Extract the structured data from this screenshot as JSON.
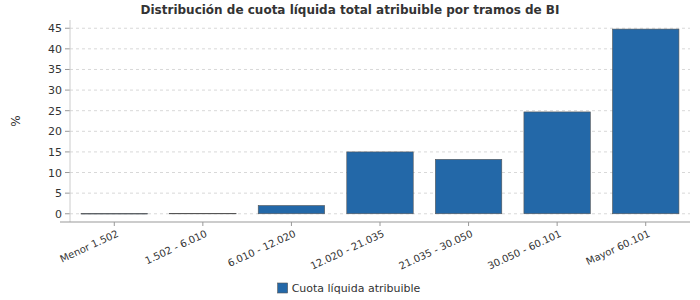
{
  "chart_data": {
    "type": "bar",
    "title": "Distribución de cuota líquida total atribuible por tramos de BI",
    "y_label": "%",
    "categories": [
      "Menor 1.502",
      "1.502 - 6.010",
      "6.010 - 12.020",
      "12.020 - 21.035",
      "21.035 - 30.050",
      "30.050 - 60.101",
      "Mayor 60.101"
    ],
    "series": [
      {
        "name": "Cuota líquida atribuible",
        "color": "#2368a8",
        "values": [
          0.05,
          0.1,
          2.0,
          15.0,
          13.2,
          24.7,
          44.8
        ]
      }
    ],
    "ylim": [
      -2,
      47
    ],
    "yticks": [
      0,
      5,
      10,
      15,
      20,
      25,
      30,
      35,
      40,
      45
    ],
    "grid": true,
    "legend": "bottom"
  }
}
